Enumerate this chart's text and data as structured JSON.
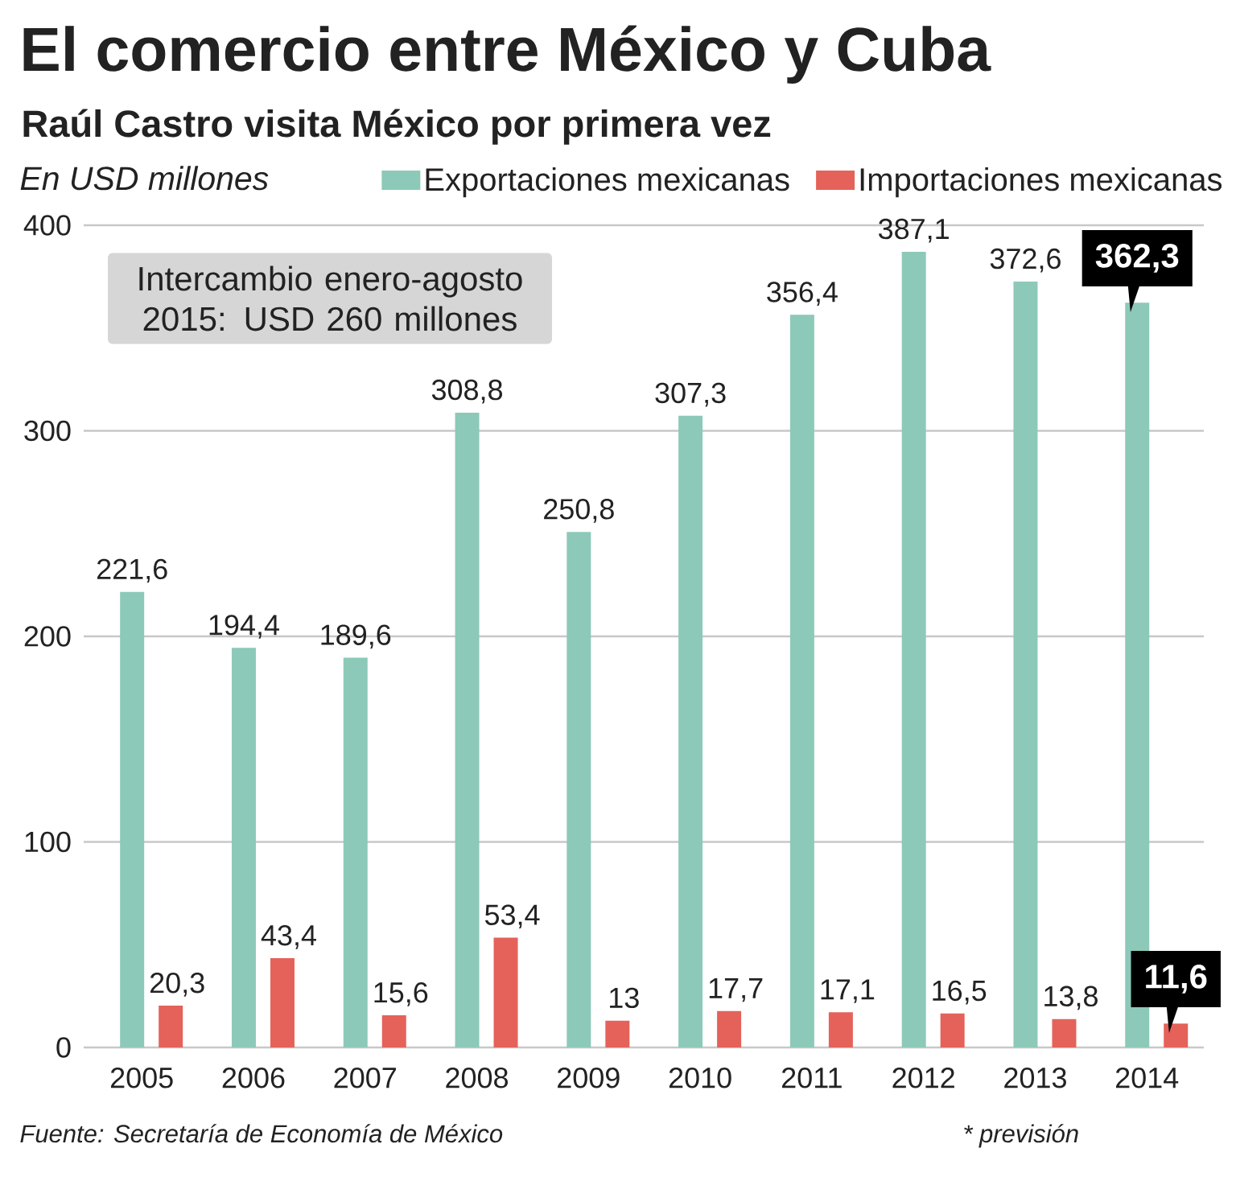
{
  "chart_data": {
    "type": "bar",
    "title": "El comercio entre México y Cuba",
    "subtitle": "Raúl Castro visita México por primera vez",
    "ylabel": "En USD millones",
    "categories": [
      "2005",
      "2006",
      "2007",
      "2008",
      "2009",
      "2010",
      "2011",
      "2012",
      "2013",
      "2014"
    ],
    "series": [
      {
        "name": "Exportaciones mexicanas",
        "color": "#8cc9b8",
        "values": [
          221.6,
          194.4,
          189.6,
          308.8,
          250.8,
          307.3,
          356.4,
          387.1,
          372.6,
          362.3
        ],
        "value_labels": [
          "221,6",
          "194,4",
          "189,6",
          "308,8",
          "250,8",
          "307,3",
          "356,4",
          "387,1",
          "372,6",
          "362,3"
        ]
      },
      {
        "name": "Importaciones mexicanas",
        "color": "#e4625a",
        "values": [
          20.3,
          43.4,
          15.6,
          53.4,
          13,
          17.7,
          17.1,
          16.5,
          13.8,
          11.6
        ],
        "value_labels": [
          "20,3",
          "43,4",
          "15,6",
          "53,4",
          "13",
          "17,7",
          "17,1",
          "16,5",
          "13,8",
          "11,6"
        ]
      }
    ],
    "ylim": [
      0,
      400
    ],
    "yticks": [
      0,
      100,
      200,
      300,
      400
    ],
    "grid": "y",
    "legend": "top right",
    "annotations": [
      "Intercambio enero-agosto 2015: USD 260 millones",
      "Fuente: Secretaría de Economía de México",
      "* previsión"
    ]
  }
}
